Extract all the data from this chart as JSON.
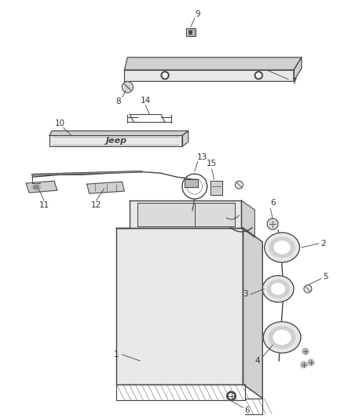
{
  "background_color": "#ffffff",
  "fig_width": 4.38,
  "fig_height": 5.33,
  "dpi": 100,
  "line_color": "#444444",
  "dark_gray": "#444444",
  "med_gray": "#888888",
  "light_gray": "#cccccc",
  "fill_light": "#e8e8e8",
  "fill_med": "#d0d0d0",
  "fill_dark": "#b8b8b8",
  "text_color": "#333333"
}
